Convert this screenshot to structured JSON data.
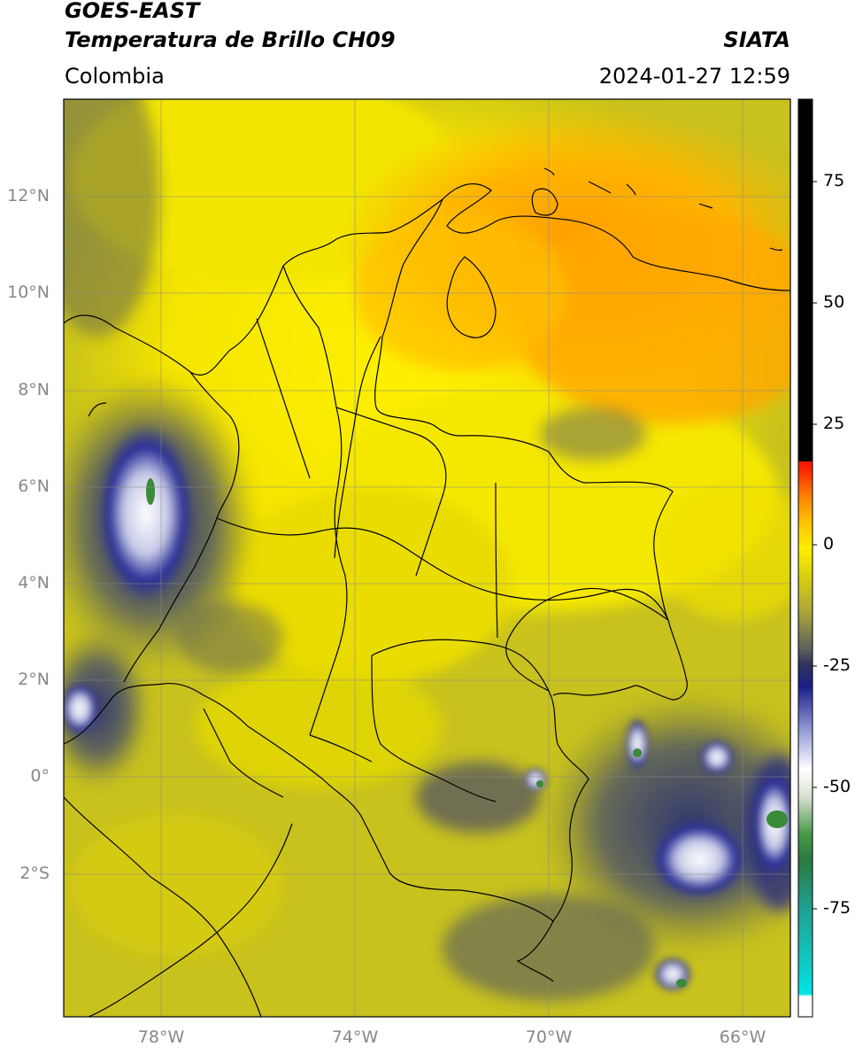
{
  "header": {
    "satellite": "GOES-EAST",
    "product": "Temperatura de Brillo CH09",
    "source": "SIATA",
    "region": "Colombia",
    "datetime": "2024-01-27 12:59"
  },
  "axes": {
    "lat_labels": [
      "12°N",
      "10°N",
      "8°N",
      "6°N",
      "4°N",
      "2°N",
      "0°",
      "2°S"
    ],
    "lon_labels": [
      "78°W",
      "74°W",
      "70°W",
      "66°W"
    ]
  },
  "colorbar": {
    "ticks": [
      "75",
      "50",
      "25",
      "0",
      "-25",
      "-50",
      "-75"
    ],
    "range": [
      -95,
      90
    ],
    "colors": {
      "warm_black": "#000000",
      "red": "#ff1a00",
      "orange": "#ff9900",
      "yellow": "#ffee00",
      "olive": "#c8c21e",
      "dark": "#3a3f55",
      "navy": "#1a1f8a",
      "white": "#f4f4f8",
      "green": "#3a8a3a",
      "teal": "#1fb0a0",
      "cyan": "#00e5e5"
    }
  }
}
